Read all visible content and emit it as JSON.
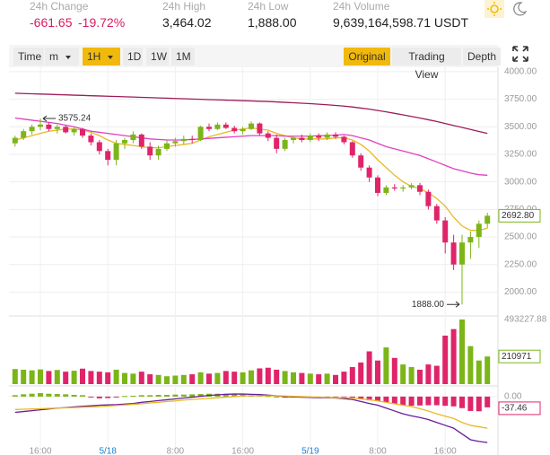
{
  "header": {
    "stats": [
      {
        "label": "24h Change",
        "value": "-661.65",
        "value2": "-19.72%"
      },
      {
        "label": "24h High",
        "value": "3,464.02"
      },
      {
        "label": "24h Low",
        "value": "1,888.00"
      },
      {
        "label": "24h Volume",
        "value": "9,639,164,598.71 USDT"
      }
    ]
  },
  "toolbar": {
    "left": [
      "Time",
      "m",
      "1H",
      "1D",
      "1W",
      "1M"
    ],
    "right": [
      "Original",
      "Trading View",
      "Depth"
    ]
  },
  "chart_data": [
    {
      "type": "candlestick",
      "up_color": "#7cb518",
      "down_color": "#e0246a",
      "categories": [
        null,
        null,
        null,
        "16:00",
        null,
        null,
        null,
        null,
        null,
        null,
        null,
        "5/18",
        null,
        null,
        null,
        null,
        null,
        null,
        null,
        "8:00",
        null,
        null,
        null,
        null,
        null,
        null,
        null,
        "16:00",
        null,
        null,
        null,
        null,
        null,
        null,
        null,
        "5/19",
        null,
        null,
        null,
        null,
        null,
        null,
        null,
        "8:00",
        null,
        null,
        null,
        null,
        null,
        null,
        null,
        "16:00",
        null,
        null,
        null,
        null,
        null
      ],
      "open": [
        3350,
        3400,
        3460,
        3500,
        3520,
        3480,
        3500,
        3450,
        3480,
        3420,
        3360,
        3280,
        3200,
        3350,
        3380,
        3430,
        3320,
        3240,
        3300,
        3350,
        3370,
        3390,
        3380,
        3500,
        3480,
        3520,
        3490,
        3460,
        3480,
        3530,
        3440,
        3400,
        3300,
        3380,
        3400,
        3380,
        3420,
        3400,
        3430,
        3410,
        3360,
        3240,
        3130,
        3040,
        2900,
        2950,
        2940,
        2950,
        2970,
        2910,
        2780,
        2650,
        2450,
        2250,
        2450,
        2500,
        2620
      ],
      "high": [
        3420,
        3480,
        3520,
        3575.24,
        3540,
        3520,
        3510,
        3500,
        3490,
        3440,
        3380,
        3300,
        3380,
        3400,
        3460,
        3440,
        3360,
        3330,
        3380,
        3400,
        3420,
        3420,
        3510,
        3530,
        3540,
        3540,
        3510,
        3500,
        3550,
        3540,
        3460,
        3430,
        3400,
        3420,
        3430,
        3440,
        3440,
        3450,
        3450,
        3420,
        3370,
        3260,
        3150,
        3060,
        2970,
        2980,
        2970,
        2990,
        2990,
        2930,
        2800,
        2680,
        2520,
        2520,
        2550,
        2650,
        2720
      ],
      "low": [
        3320,
        3380,
        3430,
        3470,
        3460,
        3440,
        3440,
        3420,
        3400,
        3330,
        3250,
        3150,
        3150,
        3300,
        3350,
        3300,
        3200,
        3200,
        3280,
        3320,
        3340,
        3350,
        3370,
        3460,
        3470,
        3480,
        3440,
        3430,
        3470,
        3420,
        3370,
        3260,
        3280,
        3350,
        3360,
        3360,
        3370,
        3380,
        3390,
        3340,
        3220,
        3100,
        3000,
        2870,
        2880,
        2920,
        2910,
        2930,
        2880,
        2750,
        2620,
        2350,
        2200,
        1888,
        2300,
        2400,
        2580
      ],
      "close": [
        3400,
        3460,
        3500,
        3520,
        3480,
        3500,
        3450,
        3480,
        3420,
        3360,
        3280,
        3200,
        3350,
        3380,
        3430,
        3320,
        3240,
        3300,
        3350,
        3370,
        3390,
        3380,
        3500,
        3480,
        3520,
        3490,
        3460,
        3480,
        3530,
        3440,
        3400,
        3300,
        3380,
        3400,
        3380,
        3420,
        3400,
        3430,
        3410,
        3360,
        3240,
        3130,
        3040,
        2900,
        2950,
        2940,
        2950,
        2970,
        2910,
        2780,
        2650,
        2450,
        2250,
        2450,
        2500,
        2620,
        2692.8
      ],
      "series": [
        {
          "color": "#e8b923",
          "values": [
            3380,
            3400,
            3420,
            3440,
            3460,
            3470,
            3480,
            3480,
            3470,
            3450,
            3420,
            3380,
            3350,
            3340,
            3330,
            3320,
            3310,
            3310,
            3320,
            3330,
            3340,
            3350,
            3380,
            3410,
            3430,
            3450,
            3470,
            3480,
            3490,
            3480,
            3470,
            3440,
            3420,
            3400,
            3390,
            3390,
            3390,
            3390,
            3400,
            3400,
            3380,
            3340,
            3280,
            3200,
            3130,
            3060,
            3000,
            2960,
            2940,
            2900,
            2850,
            2780,
            2680,
            2600,
            2560,
            2560,
            2580
          ]
        },
        {
          "color": "#e040c0",
          "values": [
            3580,
            3570,
            3560,
            3550,
            3540,
            3530,
            3515,
            3500,
            3480,
            3460,
            3450,
            3440,
            3430,
            3420,
            3410,
            3400,
            3390,
            3385,
            3380,
            3380,
            3380,
            3385,
            3390,
            3395,
            3400,
            3405,
            3410,
            3415,
            3420,
            3420,
            3420,
            3420,
            3415,
            3415,
            3415,
            3415,
            3420,
            3420,
            3425,
            3430,
            3420,
            3400,
            3380,
            3350,
            3320,
            3300,
            3280,
            3260,
            3240,
            3210,
            3180,
            3150,
            3120,
            3100,
            3080,
            3065,
            3060
          ]
        },
        {
          "color": "#9c1c5a",
          "values": [
            3805,
            3802,
            3800,
            3797,
            3795,
            3792,
            3790,
            3787,
            3785,
            3782,
            3780,
            3777,
            3775,
            3772,
            3770,
            3767,
            3765,
            3762,
            3760,
            3757,
            3755,
            3752,
            3750,
            3747,
            3745,
            3742,
            3740,
            3737,
            3735,
            3732,
            3730,
            3726,
            3722,
            3718,
            3714,
            3710,
            3705,
            3700,
            3694,
            3688,
            3680,
            3670,
            3660,
            3648,
            3636,
            3622,
            3608,
            3594,
            3580,
            3564,
            3548,
            3530,
            3512,
            3494,
            3476,
            3458,
            3440
          ]
        }
      ],
      "annotations": {
        "high": "3575.24",
        "low": "1888.00"
      },
      "last_price_label": "2692.80",
      "ylim": [
        1800,
        4040
      ],
      "yticks": [
        {
          "value": 4000,
          "label": "4000.00"
        },
        {
          "value": 3750,
          "label": "3750.00"
        },
        {
          "value": 3500,
          "label": "3500.00"
        },
        {
          "value": 3250,
          "label": "3250.00"
        },
        {
          "value": 3000,
          "label": "3000.00"
        },
        {
          "value": 2750,
          "label": "2750.00"
        },
        {
          "value": 2500,
          "label": "2500.00"
        },
        {
          "value": 2250,
          "label": "2250.00"
        },
        {
          "value": 2000,
          "label": "2000.00"
        }
      ],
      "grid": true
    },
    {
      "type": "bar",
      "values": [
        115000,
        110000,
        105000,
        112000,
        100000,
        108000,
        95000,
        102000,
        118000,
        100000,
        95000,
        90000,
        110000,
        85000,
        80000,
        95000,
        75000,
        70000,
        60000,
        65000,
        70000,
        75000,
        90000,
        80000,
        85000,
        100000,
        95000,
        90000,
        105000,
        120000,
        125000,
        110000,
        100000,
        90000,
        85000,
        80000,
        75000,
        80000,
        70000,
        95000,
        130000,
        165000,
        250000,
        180000,
        280000,
        200000,
        150000,
        130000,
        110000,
        150000,
        140000,
        370000,
        420000,
        493227.88,
        290000,
        180000,
        210971
      ],
      "ylim": [
        0,
        493227.88
      ],
      "yticks": [
        493227.88
      ]
    },
    {
      "type": "macd",
      "histogram": [
        5,
        8,
        10,
        12,
        10,
        9,
        8,
        6,
        5,
        -3,
        -6,
        -5,
        -2,
        2,
        3,
        5,
        5,
        6,
        6,
        7,
        7,
        8,
        9,
        10,
        10,
        10,
        9,
        7,
        5,
        4,
        2,
        0,
        -2,
        -2,
        -2,
        -2,
        -2,
        -1,
        -1,
        -3,
        -5,
        -9,
        -13,
        -15,
        -20,
        -25,
        -30,
        -32,
        -31,
        -30,
        -30,
        -32,
        -34,
        -40,
        -50,
        -51,
        -37.46
      ],
      "series": [
        {
          "color": "#6a1b9a",
          "values": [
            -55,
            -52,
            -49,
            -46,
            -43,
            -40,
            -38,
            -36,
            -34,
            -32,
            -30,
            -29,
            -28,
            -26,
            -24,
            -20,
            -17,
            -14,
            -11,
            -8,
            -5,
            -2,
            1,
            4,
            6,
            8,
            9,
            9,
            8,
            7,
            5,
            3,
            0,
            -1,
            -2,
            -3,
            -4,
            -4,
            -5,
            -7,
            -10,
            -17,
            -24,
            -30,
            -40,
            -50,
            -60,
            -67,
            -73,
            -80,
            -90,
            -100,
            -110,
            -130,
            -150,
            -156,
            -160
          ]
        },
        {
          "color": "#e8b923",
          "values": [
            -45,
            -44,
            -43,
            -42,
            -41,
            -40,
            -39,
            -38,
            -37,
            -36,
            -35,
            -33,
            -31,
            -29,
            -27,
            -25,
            -22,
            -20,
            -17,
            -15,
            -12,
            -10,
            -8,
            -6,
            -4,
            -2,
            0,
            2,
            3,
            3,
            3,
            3,
            2,
            1,
            0,
            -1,
            -2,
            -3,
            -4,
            -4,
            -5,
            -8,
            -11,
            -15,
            -20,
            -25,
            -30,
            -35,
            -42,
            -50,
            -60,
            -68,
            -76,
            -90,
            -100,
            -105,
            -110
          ]
        }
      ],
      "ylim": [
        -172,
        31
      ],
      "yticks": [
        {
          "value": 0,
          "label": "0.00"
        }
      ]
    }
  ]
}
